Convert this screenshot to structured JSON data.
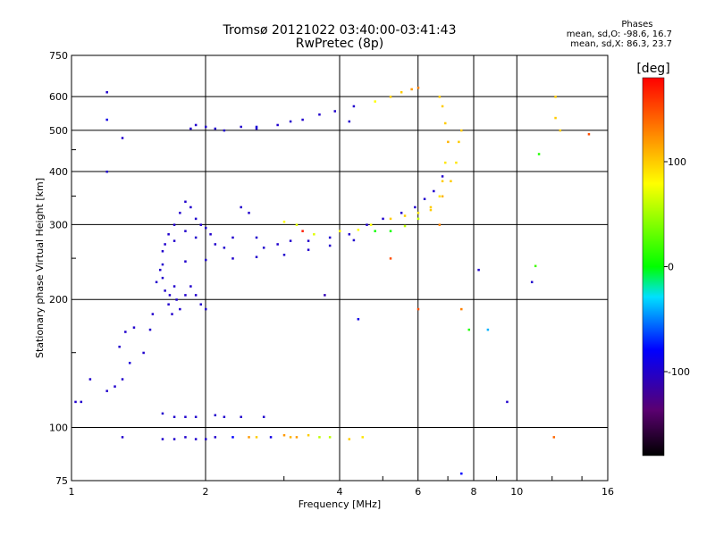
{
  "chart_data": {
    "type": "scatter",
    "title": "Tromsø 20121022 03:40:00-03:41:43",
    "subtitle": "RwPretec (8p)",
    "xlabel": "Frequency [MHz]",
    "ylabel": "Stationary phase Virtual Height [km]",
    "x_scale": "log",
    "y_scale": "log",
    "xlim": [
      1,
      16
    ],
    "ylim": [
      75,
      750
    ],
    "x_ticks": [
      1,
      2,
      4,
      6,
      8,
      10,
      16
    ],
    "x_tick_labels": [
      "1",
      "2",
      "4",
      "6",
      "8",
      "10",
      "16"
    ],
    "y_ticks": [
      75,
      100,
      200,
      300,
      400,
      500,
      600,
      750
    ],
    "y_tick_labels": [
      "75",
      "100",
      "200",
      "300",
      "400",
      "500",
      "600",
      "750"
    ],
    "grid": true,
    "phase_stats": {
      "title": "Phases",
      "line_o": "mean, sd,O: -98.6, 16.7",
      "line_x": "mean, sd,X: 86.3, 23.7"
    },
    "colorbar": {
      "label": "[deg]",
      "range": [
        -180,
        180
      ],
      "ticks": [
        100,
        0,
        -100
      ],
      "tick_labels": [
        "100",
        "0",
        "-100"
      ]
    },
    "series": [
      {
        "points": [
          [
            1.02,
            115,
            -100
          ],
          [
            1.05,
            115,
            -100
          ],
          [
            1.1,
            130,
            -100
          ],
          [
            1.2,
            122,
            -100
          ],
          [
            1.25,
            125,
            -100
          ],
          [
            1.3,
            130,
            -100
          ],
          [
            1.35,
            142,
            -95
          ],
          [
            1.28,
            155,
            -100
          ],
          [
            1.32,
            168,
            -100
          ],
          [
            1.38,
            172,
            -100
          ],
          [
            1.45,
            150,
            -100
          ],
          [
            1.5,
            170,
            -100
          ],
          [
            1.52,
            185,
            -100
          ],
          [
            1.55,
            220,
            -100
          ],
          [
            1.58,
            235,
            -100
          ],
          [
            1.6,
            225,
            -100
          ],
          [
            1.62,
            210,
            -100
          ],
          [
            1.65,
            195,
            -100
          ],
          [
            1.66,
            205,
            -100
          ],
          [
            1.68,
            185,
            -100
          ],
          [
            1.7,
            215,
            -100
          ],
          [
            1.72,
            200,
            -100
          ],
          [
            1.75,
            190,
            -100
          ],
          [
            1.8,
            205,
            -100
          ],
          [
            1.85,
            215,
            -100
          ],
          [
            1.9,
            205,
            -100
          ],
          [
            1.95,
            195,
            -100
          ],
          [
            2.0,
            190,
            -100
          ],
          [
            1.6,
            260,
            -100
          ],
          [
            1.62,
            270,
            -100
          ],
          [
            1.65,
            285,
            -100
          ],
          [
            1.7,
            300,
            -100
          ],
          [
            1.75,
            320,
            -100
          ],
          [
            1.8,
            340,
            -100
          ],
          [
            1.85,
            330,
            -100
          ],
          [
            1.9,
            310,
            -100
          ],
          [
            1.95,
            300,
            -100
          ],
          [
            2.0,
            295,
            -100
          ],
          [
            2.05,
            285,
            -100
          ],
          [
            1.7,
            275,
            -100
          ],
          [
            1.8,
            290,
            -100
          ],
          [
            1.9,
            280,
            -100
          ],
          [
            2.1,
            270,
            -100
          ],
          [
            2.2,
            265,
            -100
          ],
          [
            2.3,
            280,
            -100
          ],
          [
            2.4,
            330,
            -100
          ],
          [
            2.5,
            320,
            -100
          ],
          [
            2.6,
            280,
            -100
          ],
          [
            2.7,
            265,
            -100
          ],
          [
            2.9,
            270,
            -100
          ],
          [
            3.1,
            275,
            -100
          ],
          [
            3.4,
            275,
            -100
          ],
          [
            3.8,
            280,
            -100
          ],
          [
            4.2,
            285,
            -100
          ],
          [
            4.6,
            300,
            -100
          ],
          [
            5.0,
            310,
            -100
          ],
          [
            5.5,
            320,
            -100
          ],
          [
            5.9,
            330,
            -100
          ],
          [
            6.2,
            345,
            -100
          ],
          [
            6.5,
            360,
            -100
          ],
          [
            6.8,
            390,
            -100
          ],
          [
            1.6,
            242,
            -100
          ],
          [
            1.8,
            246,
            -100
          ],
          [
            2.0,
            248,
            -100
          ],
          [
            2.3,
            250,
            -100
          ],
          [
            2.6,
            252,
            -100
          ],
          [
            3.0,
            255,
            -100
          ],
          [
            3.4,
            262,
            -100
          ],
          [
            3.8,
            268,
            -100
          ],
          [
            4.3,
            276,
            -100
          ],
          [
            4.8,
            290,
            5
          ],
          [
            5.2,
            290,
            5
          ],
          [
            5.6,
            298,
            60
          ],
          [
            6.0,
            310,
            60
          ],
          [
            6.4,
            325,
            100
          ],
          [
            6.7,
            350,
            90
          ],
          [
            6.8,
            380,
            100
          ],
          [
            6.9,
            420,
            90
          ],
          [
            7.0,
            470,
            110
          ],
          [
            6.9,
            520,
            100
          ],
          [
            6.8,
            570,
            100
          ],
          [
            6.7,
            600,
            100
          ],
          [
            3.0,
            305,
            80
          ],
          [
            3.2,
            300,
            70
          ],
          [
            3.5,
            285,
            70
          ],
          [
            4.0,
            290,
            80
          ],
          [
            4.4,
            292,
            80
          ],
          [
            4.7,
            300,
            80
          ],
          [
            5.2,
            310,
            100
          ],
          [
            5.6,
            315,
            100
          ],
          [
            6.0,
            320,
            90
          ],
          [
            6.4,
            330,
            100
          ],
          [
            6.8,
            350,
            110
          ],
          [
            7.1,
            380,
            100
          ],
          [
            7.3,
            420,
            90
          ],
          [
            7.4,
            470,
            100
          ],
          [
            7.5,
            500,
            100
          ],
          [
            1.85,
            505,
            -100
          ],
          [
            1.9,
            515,
            -100
          ],
          [
            2.0,
            510,
            -100
          ],
          [
            2.1,
            505,
            -100
          ],
          [
            2.2,
            500,
            -100
          ],
          [
            2.4,
            510,
            -100
          ],
          [
            2.6,
            505,
            -100
          ],
          [
            2.9,
            515,
            -100
          ],
          [
            3.1,
            525,
            -100
          ],
          [
            3.3,
            530,
            -100
          ],
          [
            3.6,
            545,
            -100
          ],
          [
            3.9,
            555,
            -100
          ],
          [
            4.3,
            570,
            -100
          ],
          [
            4.8,
            585,
            80
          ],
          [
            5.2,
            600,
            100
          ],
          [
            5.5,
            615,
            100
          ],
          [
            5.8,
            625,
            120
          ],
          [
            6.0,
            630,
            130
          ],
          [
            1.2,
            615,
            -100
          ],
          [
            1.2,
            530,
            -90
          ],
          [
            1.3,
            480,
            -100
          ],
          [
            1.2,
            400,
            -100
          ],
          [
            1.6,
            108,
            -100
          ],
          [
            1.7,
            106,
            -100
          ],
          [
            1.8,
            106,
            -100
          ],
          [
            1.9,
            106,
            -100
          ],
          [
            2.1,
            107,
            -100
          ],
          [
            2.2,
            106,
            -100
          ],
          [
            2.4,
            106,
            -100
          ],
          [
            2.7,
            106,
            -100
          ],
          [
            1.3,
            95,
            -100
          ],
          [
            1.6,
            94,
            -100
          ],
          [
            1.7,
            94,
            -100
          ],
          [
            1.8,
            95,
            -100
          ],
          [
            1.9,
            94,
            -100
          ],
          [
            2.0,
            94,
            -100
          ],
          [
            2.1,
            95,
            -100
          ],
          [
            2.3,
            95,
            -80
          ],
          [
            2.5,
            95,
            120
          ],
          [
            2.6,
            95,
            100
          ],
          [
            2.8,
            95,
            -90
          ],
          [
            3.0,
            96,
            120
          ],
          [
            3.1,
            95,
            110
          ],
          [
            3.2,
            95,
            120
          ],
          [
            3.4,
            96,
            100
          ],
          [
            3.6,
            95,
            60
          ],
          [
            3.8,
            95,
            60
          ],
          [
            4.2,
            94,
            100
          ],
          [
            4.5,
            95,
            90
          ],
          [
            6.0,
            190,
            150
          ],
          [
            7.5,
            190,
            130
          ],
          [
            7.8,
            170,
            10
          ],
          [
            8.2,
            235,
            -100
          ],
          [
            8.6,
            170,
            -40
          ],
          [
            9.5,
            115,
            -100
          ],
          [
            10.8,
            220,
            -100
          ],
          [
            11.0,
            240,
            20
          ],
          [
            12.2,
            600,
            100
          ],
          [
            12.5,
            500,
            100
          ],
          [
            12.1,
            95,
            140
          ],
          [
            14.5,
            490,
            150
          ],
          [
            3.3,
            290,
            170
          ],
          [
            4.2,
            525,
            -100
          ],
          [
            5.2,
            250,
            150
          ],
          [
            6.7,
            300,
            130
          ],
          [
            7.5,
            78,
            -80
          ],
          [
            4.4,
            180,
            -90
          ],
          [
            3.7,
            205,
            -110
          ],
          [
            2.6,
            510,
            -95
          ],
          [
            11.2,
            440,
            10
          ],
          [
            12.2,
            535,
            100
          ]
        ]
      }
    ]
  }
}
